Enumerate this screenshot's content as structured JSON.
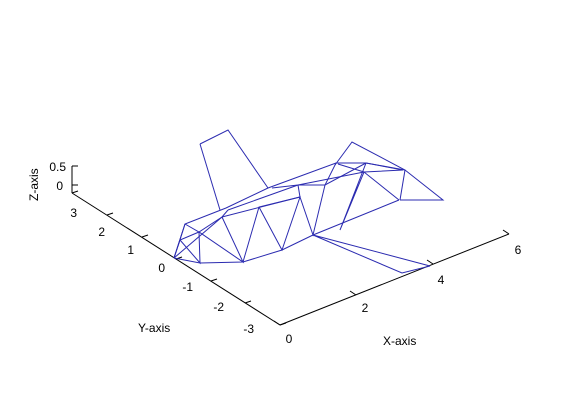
{
  "chart_data": {
    "type": "wireframe-3d",
    "title": "",
    "xlabel": "X-axis",
    "ylabel": "Y-axis",
    "zlabel": "Z-axis",
    "xlim": [
      0,
      6
    ],
    "ylim": [
      -3,
      3
    ],
    "zlim": [
      0,
      0.5
    ],
    "x_ticks": [
      "0",
      "2",
      "4",
      "6"
    ],
    "y_ticks": [
      "-3",
      "-2",
      "-1",
      "0",
      "1",
      "2",
      "3"
    ],
    "z_ticks": [
      "0",
      "0.5"
    ],
    "grid": false,
    "color": "#2b2bb0"
  }
}
